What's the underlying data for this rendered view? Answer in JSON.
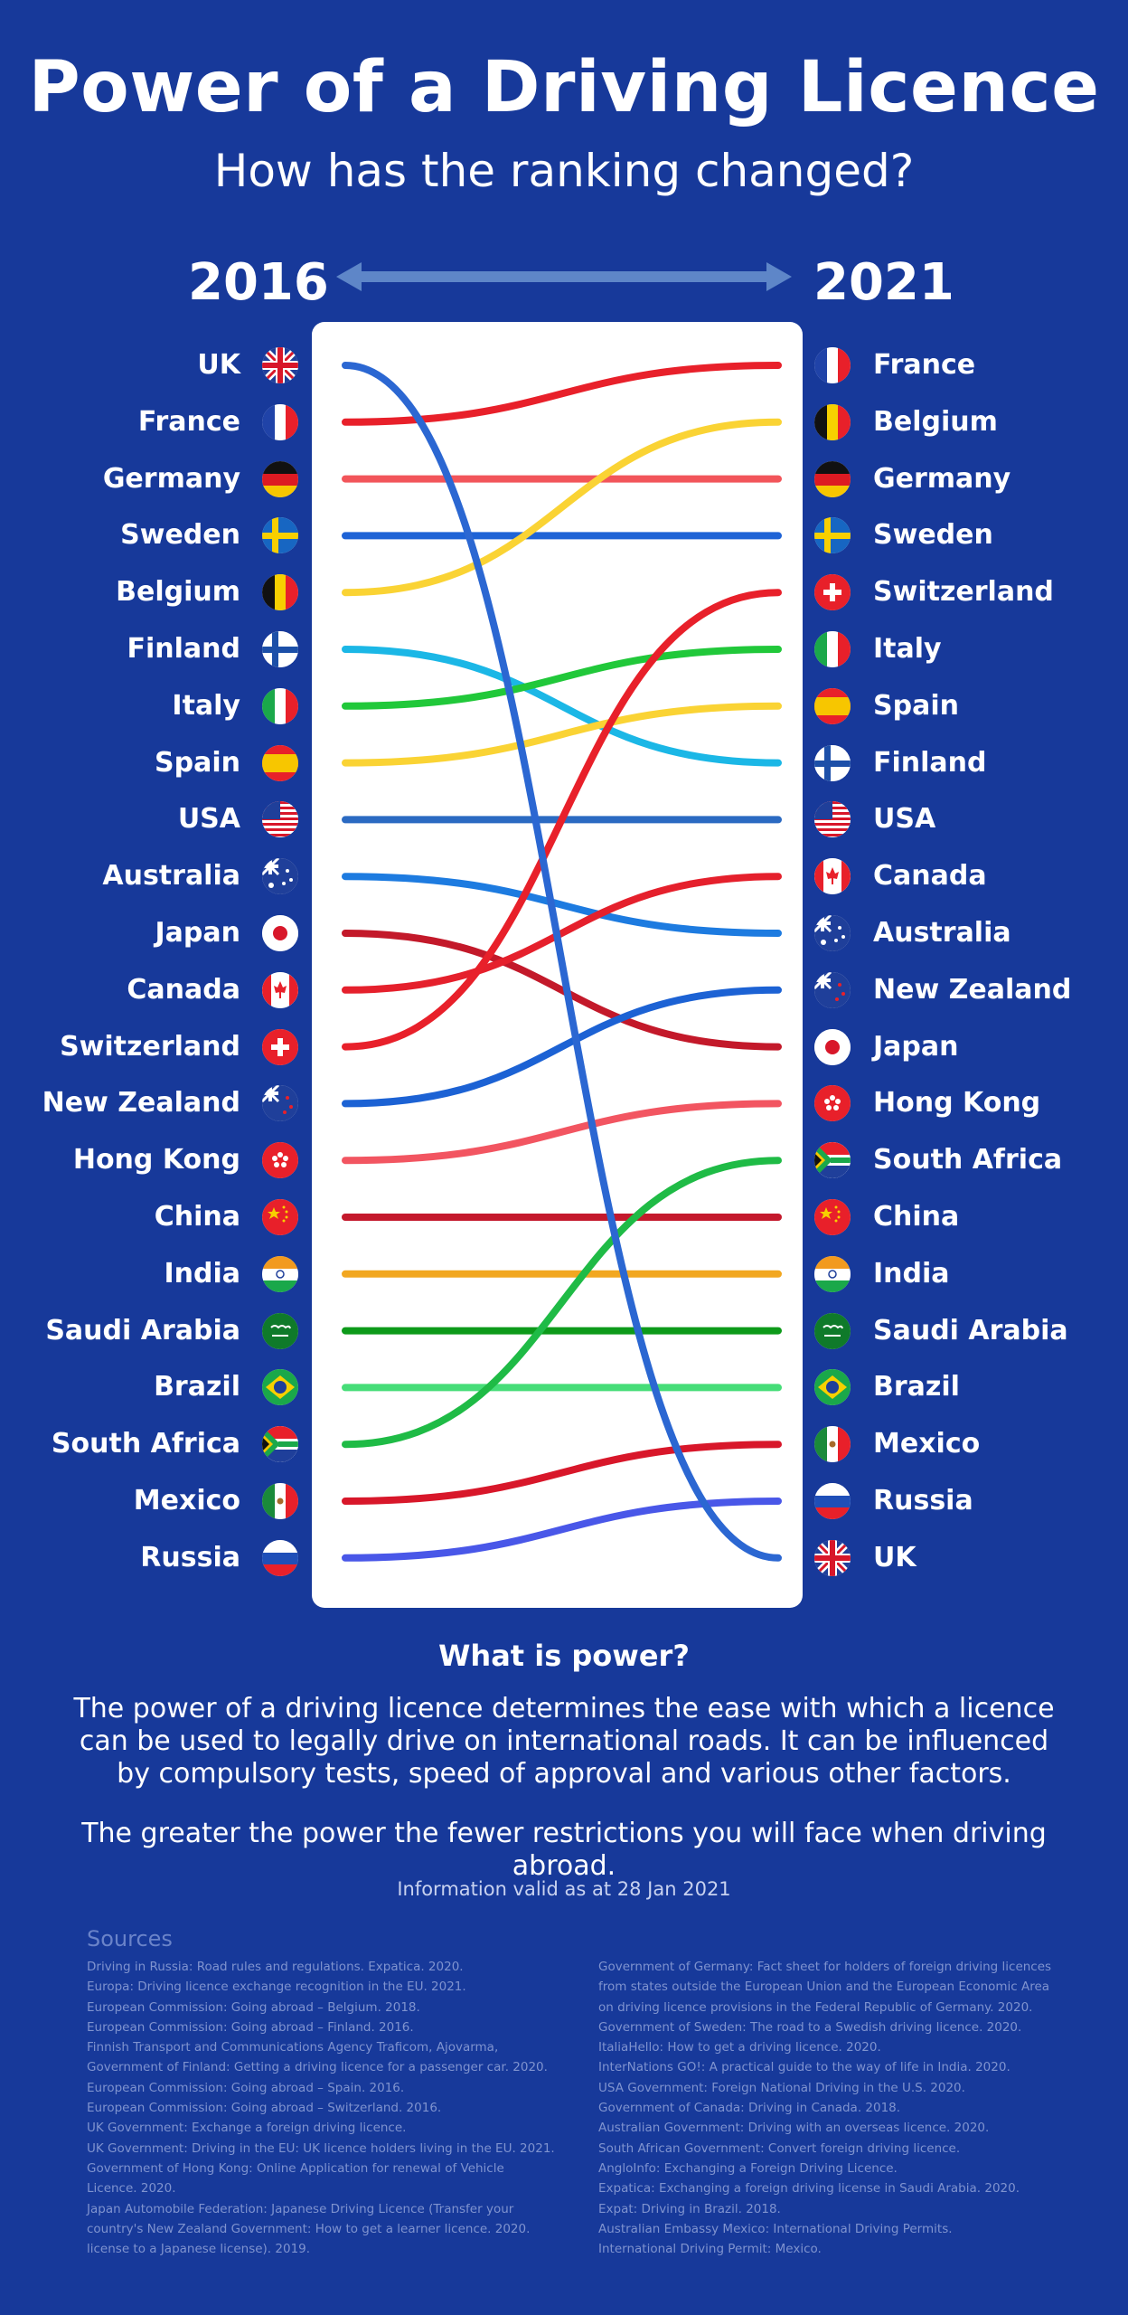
{
  "title": "Power of a Driving Licence",
  "subtitle": "How has the ranking changed?",
  "chart_data": {
    "type": "line",
    "chart_kind": "slope / bump chart of rankings",
    "x": [
      "2016",
      "2021"
    ],
    "rank_order": "1 = most powerful (top)",
    "countries": [
      {
        "name": "UK",
        "flag": "uk-flag-icon",
        "color": "#2b67d2",
        "rank_2016": 1,
        "rank_2021": 22
      },
      {
        "name": "France",
        "flag": "france-flag-icon",
        "color": "#e8202a",
        "rank_2016": 2,
        "rank_2021": 1
      },
      {
        "name": "Germany",
        "flag": "germany-flag-icon",
        "color": "#f2555a",
        "rank_2016": 3,
        "rank_2021": 3
      },
      {
        "name": "Sweden",
        "flag": "sweden-flag-icon",
        "color": "#1e63d6",
        "rank_2016": 4,
        "rank_2021": 4
      },
      {
        "name": "Belgium",
        "flag": "belgium-flag-icon",
        "color": "#fad334",
        "rank_2016": 5,
        "rank_2021": 2
      },
      {
        "name": "Finland",
        "flag": "finland-flag-icon",
        "color": "#1bb7e6",
        "rank_2016": 6,
        "rank_2021": 8
      },
      {
        "name": "Italy",
        "flag": "italy-flag-icon",
        "color": "#21c83a",
        "rank_2016": 7,
        "rank_2021": 6
      },
      {
        "name": "Spain",
        "flag": "spain-flag-icon",
        "color": "#fad334",
        "rank_2016": 8,
        "rank_2021": 7
      },
      {
        "name": "USA",
        "flag": "usa-flag-icon",
        "color": "#2b6ac2",
        "rank_2016": 9,
        "rank_2021": 9
      },
      {
        "name": "Australia",
        "flag": "australia-flag-icon",
        "color": "#1d7be0",
        "rank_2016": 10,
        "rank_2021": 11
      },
      {
        "name": "Japan",
        "flag": "japan-flag-icon",
        "color": "#c3192a",
        "rank_2016": 11,
        "rank_2021": 13
      },
      {
        "name": "Canada",
        "flag": "canada-flag-icon",
        "color": "#e5202c",
        "rank_2016": 12,
        "rank_2021": 10
      },
      {
        "name": "Switzerland",
        "flag": "switzerland-flag-icon",
        "color": "#e8202a",
        "rank_2016": 13,
        "rank_2021": 5
      },
      {
        "name": "New Zealand",
        "flag": "new-zealand-flag-icon",
        "color": "#1c62d4",
        "rank_2016": 14,
        "rank_2021": 12
      },
      {
        "name": "Hong Kong",
        "flag": "hong-kong-flag-icon",
        "color": "#f25561",
        "rank_2016": 15,
        "rank_2021": 14
      },
      {
        "name": "China",
        "flag": "china-flag-icon",
        "color": "#c4192c",
        "rank_2016": 16,
        "rank_2021": 16
      },
      {
        "name": "India",
        "flag": "india-flag-icon",
        "color": "#f2a720",
        "rank_2016": 17,
        "rank_2021": 17
      },
      {
        "name": "Saudi Arabia",
        "flag": "saudi-arabia-flag-icon",
        "color": "#0d9a1a",
        "rank_2016": 18,
        "rank_2021": 18
      },
      {
        "name": "Brazil",
        "flag": "brazil-flag-icon",
        "color": "#46dd78",
        "rank_2016": 19,
        "rank_2021": 19
      },
      {
        "name": "South Africa",
        "flag": "south-africa-flag-icon",
        "color": "#1fbb46",
        "rank_2016": 20,
        "rank_2021": 15
      },
      {
        "name": "Mexico",
        "flag": "mexico-flag-icon",
        "color": "#d8172a",
        "rank_2016": 21,
        "rank_2021": 20
      },
      {
        "name": "Russia",
        "flag": "russia-flag-icon",
        "color": "#4957e8",
        "rank_2016": 22,
        "rank_2021": 21
      }
    ],
    "years": {
      "left": "2016",
      "right": "2021"
    },
    "legend": "none"
  },
  "arrow_icon": "double-headed-arrow-icon",
  "what_is_power": {
    "heading": "What is power?",
    "paragraph1": "The power of a driving licence determines the ease with which a licence can be used to legally drive on international roads. It can be influenced by compulsory tests, speed of approval and various other factors.",
    "paragraph2": "The greater the power the fewer restrictions you will face when driving abroad."
  },
  "valid_note": "Information valid as at 28 Jan 2021",
  "sources": {
    "title": "Sources",
    "left": [
      "Driving in Russia: Road rules and regulations. Expatica. 2020.",
      "Europa: Driving licence exchange recognition in the EU. 2021.",
      "European Commission: Going abroad – Belgium. 2018.",
      "European Commission: Going abroad – Finland. 2016.",
      "Finnish Transport and Communications Agency Traficom, Ajovarma, Government of Finland: Getting a driving licence for a passenger car. 2020.",
      "European Commission: Going abroad – Spain. 2016.",
      "European Commission: Going abroad – Switzerland. 2016.",
      "UK Government: Exchange a foreign driving licence.",
      "UK Government: Driving in the EU: UK licence holders living in the EU. 2021.",
      "Government of Hong Kong: Online Application for renewal of Vehicle Licence. 2020.",
      "Japan Automobile Federation: Japanese Driving Licence (Transfer your country's New Zealand Government: How to get a learner licence. 2020.",
      "license to a Japanese license). 2019."
    ],
    "right": [
      "Government of Germany: Fact sheet for holders of foreign driving licences from states outside the European Union and the European Economic Area on driving licence provisions in the Federal Republic of Germany. 2020.",
      "Government of Sweden: The road to a Swedish driving licence. 2020.",
      "ItaliaHello: How to get a driving licence. 2020.",
      "InterNations GO!: A practical guide to the way of life in India. 2020.",
      "USA Government: Foreign National Driving in the U.S. 2020.",
      "Government of Canada: Driving in Canada. 2018.",
      "Australian Government: Driving with an overseas licence. 2020.",
      "South African Government: Convert foreign driving licence.",
      "AngloInfo: Exchanging a Foreign Driving Licence.",
      "Expatica: Exchanging a foreign driving license in Saudi Arabia. 2020.",
      "Expat: Driving in Brazil. 2018.",
      "Australian Embassy Mexico: International Driving Permits.",
      "International Driving Permit: Mexico."
    ]
  }
}
